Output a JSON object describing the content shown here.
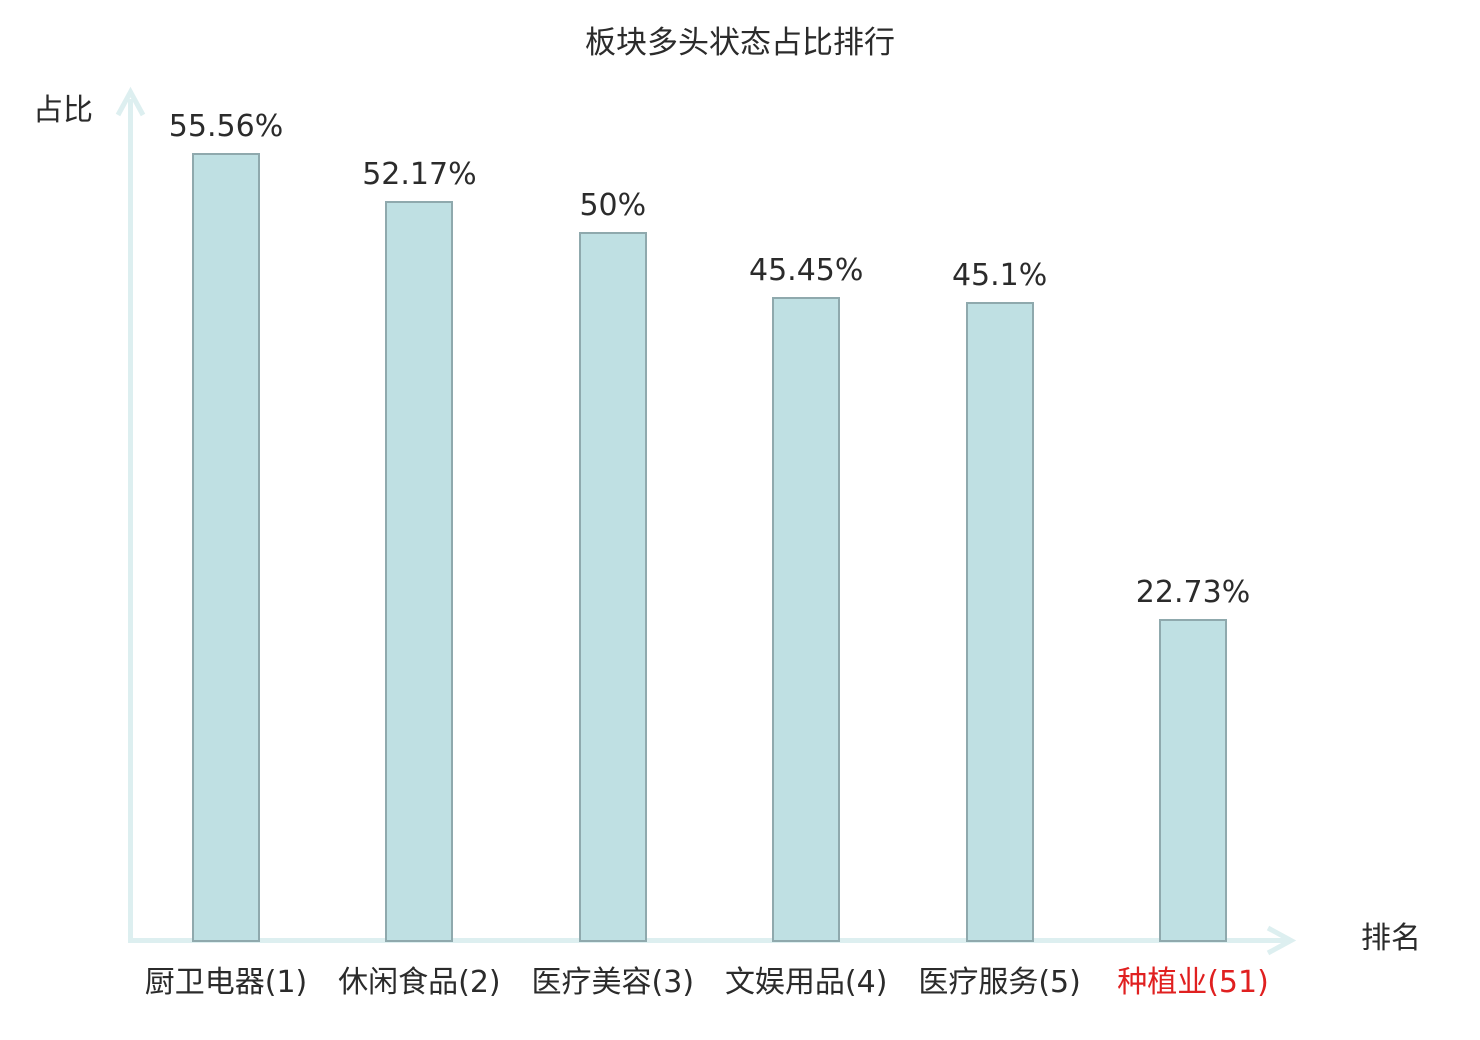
{
  "chart_data": {
    "type": "bar",
    "title": "板块多头状态占比排行",
    "xlabel": "排名",
    "ylabel": "占比",
    "ylim": [
      0,
      60
    ],
    "grid": false,
    "legend": false,
    "categories": [
      "厨卫电器(1)",
      "休闲食品(2)",
      "医疗美容(3)",
      "文娱用品(4)",
      "医疗服务(5)",
      "种植业(51)"
    ],
    "values": [
      55.56,
      52.17,
      50,
      45.45,
      45.1,
      22.73
    ],
    "value_labels": [
      "55.56%",
      "52.17%",
      "50%",
      "45.45%",
      "45.1%",
      "22.73%"
    ],
    "ranks": [
      1,
      2,
      3,
      4,
      5,
      51
    ],
    "highlight_index": 5,
    "colors": {
      "bar_fill": "#bfe0e3",
      "bar_border": "#8fa9ad",
      "axis": "#ddeff0",
      "text": "#2b2b2b",
      "highlight_text": "#e02020"
    }
  }
}
